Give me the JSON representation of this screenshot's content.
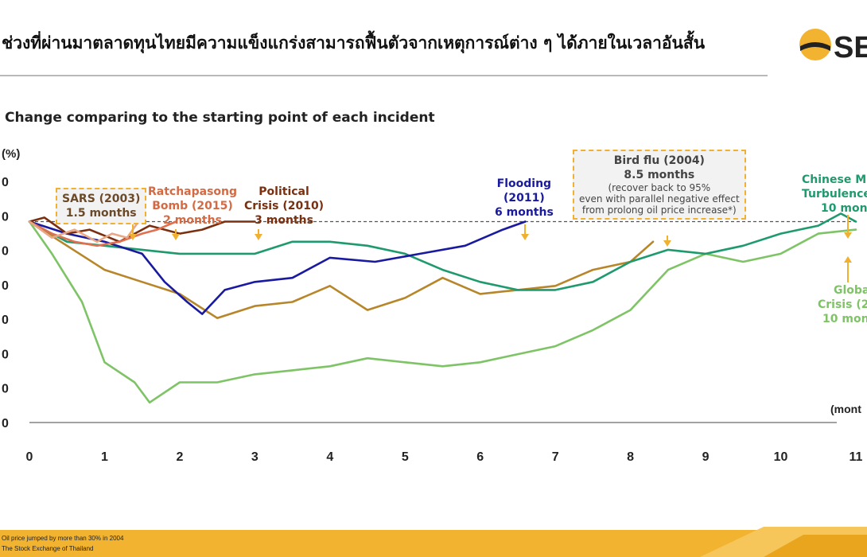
{
  "header": {
    "title": "ช่วงที่ผ่านมาตลาดทุนไทยมีความแข็งแกร่งสามารถฟื้นตัวจากเหตุการณ์ต่าง ๆ ได้ภายในเวลาอันสั้น",
    "logo_text": "SE"
  },
  "subtitle": "Change comparing to the starting point of each incident",
  "chart_data": {
    "type": "line",
    "ylabel": "(%)",
    "xlabel": "(mont",
    "xlim": [
      0,
      11
    ],
    "ylim": [
      -50,
      10
    ],
    "x_ticks": [
      0,
      1,
      2,
      3,
      4,
      5,
      6,
      7,
      8,
      9,
      10,
      11
    ],
    "y_tick_labels": [
      "0",
      "0",
      "0",
      "0",
      "0",
      "0",
      "0",
      "0"
    ],
    "reference_line": 0,
    "series": [
      {
        "name": "SARS (2003)",
        "color": "#e8a888",
        "x": [
          0,
          0.3,
          0.6,
          0.9,
          1.1,
          1.3,
          1.45
        ],
        "y": [
          0,
          -4,
          -2,
          -5,
          -3,
          -4,
          0
        ]
      },
      {
        "name": "Ratchapasong Bomb (2015)",
        "color": "#e07050",
        "x": [
          0,
          0.3,
          0.6,
          0.9,
          1.2,
          1.5,
          1.7,
          1.95
        ],
        "y": [
          0,
          -3,
          -5,
          -6,
          -5,
          -3,
          -2,
          0
        ]
      },
      {
        "name": "Political Crisis (2010)",
        "color": "#7a3010",
        "x": [
          0,
          0.2,
          0.5,
          0.8,
          1.2,
          1.6,
          2.0,
          2.3,
          2.6,
          3.0
        ],
        "y": [
          0,
          1,
          -3,
          -2,
          -5,
          -1,
          -3,
          -2,
          0,
          0
        ]
      },
      {
        "name": "Flooding (2011)",
        "color": "#1a1aa0",
        "x": [
          0,
          0.5,
          1.0,
          1.5,
          1.8,
          2.1,
          2.3,
          2.6,
          3.0,
          3.5,
          4.0,
          4.6,
          5.2,
          5.8,
          6.3,
          6.6
        ],
        "y": [
          0,
          -3,
          -5,
          -8,
          -15,
          -20,
          -23,
          -17,
          -15,
          -14,
          -9,
          -10,
          -8,
          -6,
          -2,
          0
        ]
      },
      {
        "name": "Bird flu (2004)",
        "color": "#b8862a",
        "x": [
          0,
          0.5,
          1.0,
          1.5,
          2.0,
          2.5,
          3.0,
          3.5,
          4.0,
          4.5,
          5.0,
          5.5,
          6.0,
          6.5,
          7.0,
          7.5,
          8.0,
          8.3
        ],
        "y": [
          0,
          -6,
          -12,
          -15,
          -18,
          -24,
          -21,
          -20,
          -16,
          -22,
          -19,
          -14,
          -18,
          -17,
          -16,
          -12,
          -10,
          -5
        ]
      },
      {
        "name": "Chinese Market Turbulence",
        "color": "#1f9a6e",
        "x": [
          0,
          0.5,
          1.0,
          1.5,
          2.0,
          2.5,
          3.0,
          3.5,
          4.0,
          4.5,
          5.0,
          5.5,
          6.0,
          6.5,
          7.0,
          7.5,
          8.0,
          8.5,
          9.0,
          9.5,
          10.0,
          10.5,
          10.8,
          11.0
        ],
        "y": [
          0,
          -5,
          -6,
          -7,
          -8,
          -8,
          -8,
          -5,
          -5,
          -6,
          -8,
          -12,
          -15,
          -17,
          -17,
          -15,
          -10,
          -7,
          -8,
          -6,
          -3,
          -1,
          2,
          0
        ]
      },
      {
        "name": "Global Financial Crisis",
        "color": "#7ec466",
        "x": [
          0,
          0.3,
          0.7,
          1.0,
          1.4,
          1.6,
          2.0,
          2.5,
          3.0,
          3.5,
          4.0,
          4.5,
          5.0,
          5.5,
          6.0,
          6.5,
          7.0,
          7.5,
          8.0,
          8.5,
          9.0,
          9.5,
          10.0,
          10.5,
          11.0
        ],
        "y": [
          0,
          -8,
          -20,
          -35,
          -40,
          -45,
          -40,
          -40,
          -38,
          -37,
          -36,
          -34,
          -35,
          -36,
          -35,
          -33,
          -31,
          -27,
          -22,
          -12,
          -8,
          -10,
          -8,
          -3,
          -2
        ]
      }
    ]
  },
  "annotations": [
    {
      "id": "sars",
      "title": "SARS (2003)",
      "duration": "1.5 months",
      "color": "#7a5a3a"
    },
    {
      "id": "ratch",
      "title": "Ratchapasong",
      "title2": "Bomb (2015)",
      "duration": "2 months",
      "color": "#d46a44"
    },
    {
      "id": "political",
      "title": "Political",
      "title2": "Crisis (2010)",
      "duration": "3 months",
      "color": "#7a3010"
    },
    {
      "id": "flood",
      "title": "Flooding",
      "title2": "(2011)",
      "duration": "6 months",
      "color": "#1a1aa0"
    },
    {
      "id": "birdflu",
      "title": "Bird flu (2004)",
      "duration": "8.5 months",
      "note1": "(recover back to 95%",
      "note2": "even with parallel negative effect",
      "note3": "from prolong oil price increase*)",
      "color": "#444444"
    },
    {
      "id": "chinese",
      "title": "Chinese M",
      "title2": "Turbulence",
      "duration": "10 mon",
      "color": "#1f9a6e"
    },
    {
      "id": "global",
      "title": "Globa",
      "title2": "Crisis (2",
      "duration": "10 mon",
      "color": "#7ec466"
    }
  ],
  "footer": {
    "note": "Oil price jumped by more than 30% in 2004",
    "source": "The Stock Exchange of Thailand",
    "bar_color": "#f2b430"
  }
}
